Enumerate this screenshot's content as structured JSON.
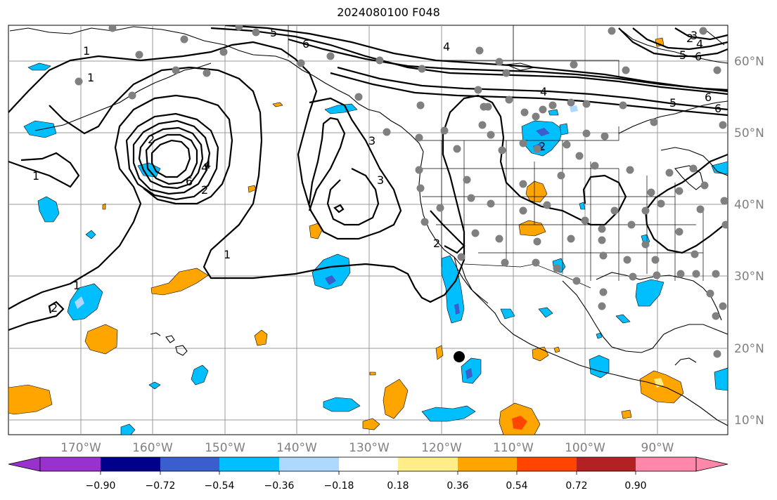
{
  "title": "2024080100 F048",
  "map": {
    "lon_labels": [
      "170°W",
      "160°W",
      "150°W",
      "140°W",
      "130°W",
      "120°W",
      "110°W",
      "100°W",
      "90°W"
    ],
    "lat_labels": [
      "60°N",
      "50°N",
      "40°N",
      "30°N",
      "20°N",
      "10°N"
    ],
    "contour_labels": [
      "1",
      "1",
      "1",
      "1",
      "1",
      "2",
      "2",
      "2",
      "3",
      "3",
      "4",
      "4",
      "4",
      "5",
      "5",
      "6",
      "6",
      "6",
      "6",
      "2",
      "3",
      "4",
      "5",
      "6",
      "4",
      "2",
      "2"
    ],
    "colors": {
      "contour": "#000000",
      "grid": "#999999",
      "station": "#808080",
      "coast": "#000000"
    }
  },
  "colorbar": {
    "ticks": [
      "−0.90",
      "−0.72",
      "−0.54",
      "−0.36",
      "−0.18",
      "0.18",
      "0.36",
      "0.54",
      "0.72",
      "0.90"
    ],
    "colors": [
      "#9932cc",
      "#00008b",
      "#3a5fcd",
      "#00bfff",
      "#add8ff",
      "#ffffff",
      "#ffee88",
      "#ffa500",
      "#ff4500",
      "#b22222",
      "#ff88aa"
    ]
  }
}
